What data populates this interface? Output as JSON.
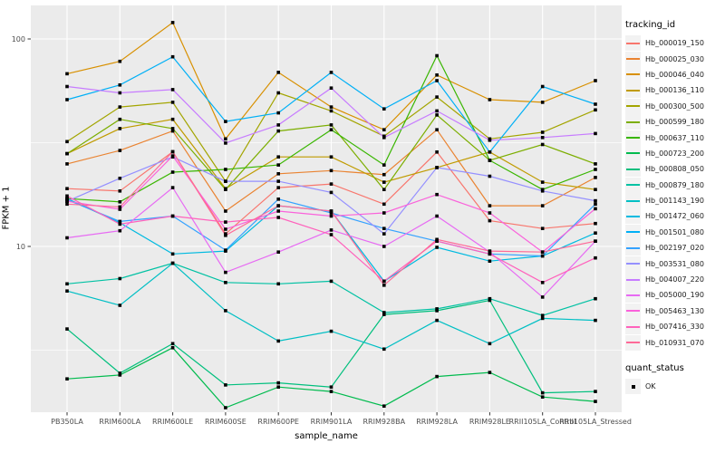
{
  "figure": {
    "y_axis_title": "FPKM + 1",
    "x_axis_title": "sample_name",
    "legend": {
      "tracking_title": "tracking_id",
      "quant_title": "quant_status",
      "quant_value": "OK",
      "quant_marker": "filled-black-square"
    },
    "colors": {
      "panel_bg": "#EBEBEB",
      "grid": "#FFFFFF",
      "point": "#000000",
      "tick_text": "#4D4D4D",
      "legend_key_bg": "#F2F2F2"
    }
  },
  "chart_data": {
    "type": "line",
    "title": "",
    "xlabel": "sample_name",
    "ylabel": "FPKM + 1",
    "y_scale": "log10",
    "ylim": [
      1.5,
      130
    ],
    "y_ticks": [
      100,
      10
    ],
    "y_minor_ticks": [
      31.6,
      3.16
    ],
    "grid": true,
    "legend_position": "right",
    "marker": "black-square",
    "categories": [
      "PB350LA",
      "RRIM600LA",
      "RRIM600LE",
      "RRIM600SE",
      "RRIM600PE",
      "RRIM901LA",
      "RRIM928BA",
      "RRIM928LA",
      "RRIM928LE",
      "RRII105LA_Control",
      "RRII105LA_Stressed"
    ],
    "series": [
      {
        "name": "Hb_000019_150",
        "color": "#F8766D",
        "quant_status": "OK",
        "values": [
          19,
          18.5,
          28.6,
          11.5,
          19.2,
          20,
          16,
          28.5,
          13.3,
          12.2,
          12.9
        ]
      },
      {
        "name": "Hb_000025_030",
        "color": "#EA8331",
        "quant_status": "OK",
        "values": [
          25,
          29,
          36,
          14.8,
          22.4,
          23.2,
          22.2,
          36.5,
          15.7,
          15.7,
          21.5
        ]
      },
      {
        "name": "Hb_000046_040",
        "color": "#D89000",
        "quant_status": "OK",
        "values": [
          68,
          78,
          120,
          33,
          69,
          47,
          36.5,
          67,
          51,
          49.5,
          63
        ]
      },
      {
        "name": "Hb_000136_110",
        "color": "#C09B00",
        "quant_status": "OK",
        "values": [
          28,
          37,
          41,
          19,
          27,
          27,
          20.4,
          24,
          28.5,
          20.4,
          18.8
        ]
      },
      {
        "name": "Hb_000300_500",
        "color": "#A3A500",
        "quant_status": "OK",
        "values": [
          32,
          47,
          49.5,
          20.6,
          55,
          45,
          34,
          52.5,
          33,
          35.5,
          45.5
        ]
      },
      {
        "name": "Hb_000599_180",
        "color": "#7CAE00",
        "quant_status": "OK",
        "values": [
          28,
          41,
          37,
          18.8,
          36,
          38.5,
          18.8,
          43,
          26,
          31,
          25
        ]
      },
      {
        "name": "Hb_000637_110",
        "color": "#39B600",
        "quant_status": "OK",
        "values": [
          17,
          16.4,
          22.8,
          23.5,
          24.7,
          36.5,
          24.7,
          83,
          26,
          18.8,
          23.5
        ]
      },
      {
        "name": "Hb_000723_200",
        "color": "#00BB4E",
        "quant_status": "OK",
        "values": [
          2.3,
          2.4,
          3.25,
          1.67,
          2.1,
          2.0,
          1.7,
          2.36,
          2.47,
          1.88,
          1.79
        ]
      },
      {
        "name": "Hb_000808_050",
        "color": "#00BF7D",
        "quant_status": "OK",
        "values": [
          4.0,
          2.45,
          3.4,
          2.15,
          2.2,
          2.1,
          4.7,
          4.9,
          5.5,
          1.97,
          2.0
        ]
      },
      {
        "name": "Hb_000879_180",
        "color": "#00C1A3",
        "quant_status": "OK",
        "values": [
          6.6,
          7.0,
          8.3,
          6.7,
          6.6,
          6.8,
          4.8,
          5.0,
          5.6,
          4.65,
          5.6
        ]
      },
      {
        "name": "Hb_001143_190",
        "color": "#00BFC4",
        "quant_status": "OK",
        "values": [
          6.1,
          5.2,
          8.3,
          4.9,
          3.5,
          3.9,
          3.2,
          4.4,
          3.4,
          4.5,
          4.4
        ]
      },
      {
        "name": "Hb_001472_060",
        "color": "#00BAE0",
        "quant_status": "OK",
        "values": [
          17,
          13.0,
          9.2,
          9.5,
          15.7,
          14.8,
          6.8,
          9.9,
          8.5,
          9.0,
          11.6
        ]
      },
      {
        "name": "Hb_001501_080",
        "color": "#00B0F6",
        "quant_status": "OK",
        "values": [
          51,
          60,
          82,
          40,
          44,
          69,
          46,
          63,
          28.5,
          59,
          48.5
        ]
      },
      {
        "name": "Hb_002197_020",
        "color": "#35A2FF",
        "quant_status": "OK",
        "values": [
          16.8,
          13.2,
          14,
          9.6,
          16.9,
          14.5,
          12.2,
          10.6,
          9.2,
          9.0,
          16
        ]
      },
      {
        "name": "Hb_003531_080",
        "color": "#9590FF",
        "quant_status": "OK",
        "values": [
          16.5,
          21.3,
          27,
          20.6,
          20.6,
          18.2,
          11.5,
          24,
          21.8,
          18.5,
          16.6
        ]
      },
      {
        "name": "Hb_004007_220",
        "color": "#C77CFF",
        "quant_status": "OK",
        "values": [
          59,
          55,
          57,
          31.5,
          38.5,
          58,
          33.5,
          45,
          32.5,
          33.5,
          35
        ]
      },
      {
        "name": "Hb_005000_190",
        "color": "#E76BF3",
        "quant_status": "OK",
        "values": [
          11,
          11.9,
          19.2,
          7.5,
          9.4,
          12,
          10,
          14,
          9.4,
          5.7,
          10.6
        ]
      },
      {
        "name": "Hb_005463_130",
        "color": "#FA62DB",
        "quant_status": "OK",
        "values": [
          16.5,
          15.1,
          27.3,
          12.1,
          14.8,
          14.0,
          14.5,
          17.8,
          14.5,
          9.4,
          15.2
        ]
      },
      {
        "name": "Hb_007416_330",
        "color": "#FF62BC",
        "quant_status": "OK",
        "values": [
          17.5,
          12.8,
          14.0,
          13.1,
          13.8,
          11.4,
          6.8,
          10.6,
          9.2,
          6.7,
          8.8
        ]
      },
      {
        "name": "Hb_010931_070",
        "color": "#FF6A98",
        "quant_status": "OK",
        "values": [
          16.0,
          15.5,
          28.6,
          11.3,
          15.7,
          14.8,
          6.5,
          10.8,
          9.5,
          9.4,
          10.6
        ]
      }
    ]
  }
}
